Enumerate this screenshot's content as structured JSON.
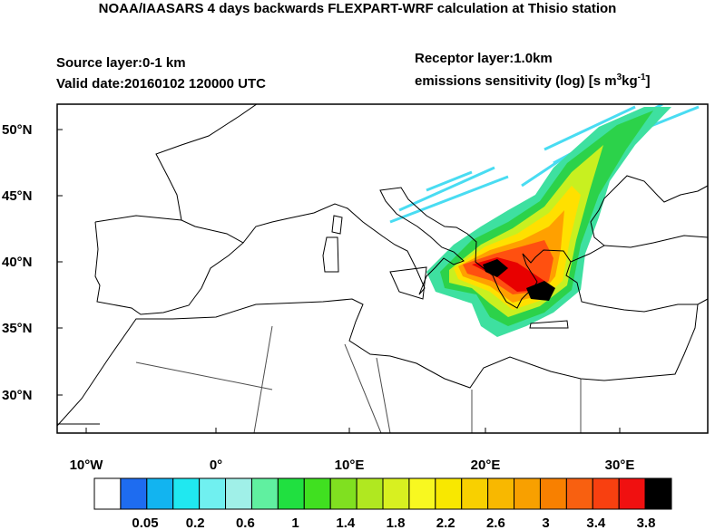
{
  "header": {
    "title": "NOAA/IAASARS 4 days backwards FLEXPART-WRF calculation at Thisio station",
    "source_layer": "Source layer:0-1 km",
    "valid_date": "Valid date:20160102 120000 UTC",
    "receptor_layer": "Receptor layer:1.0km",
    "units": {
      "text": "emissions sensitivity (log) [s m",
      "sup1": "3",
      "mid": "kg",
      "sup2": "-1",
      "end": "]"
    }
  },
  "map": {
    "lat_labels": [
      "50°N",
      "45°N",
      "40°N",
      "35°N",
      "30°N"
    ],
    "lon_labels": [
      "10°W",
      "0°",
      "10°E",
      "20°E",
      "30°E"
    ]
  },
  "colorbar": {
    "labels": [
      "0.05",
      "0.2",
      "0.6",
      "1",
      "1.4",
      "1.8",
      "2.2",
      "2.6",
      "3",
      "3.4",
      "3.8"
    ]
  }
}
